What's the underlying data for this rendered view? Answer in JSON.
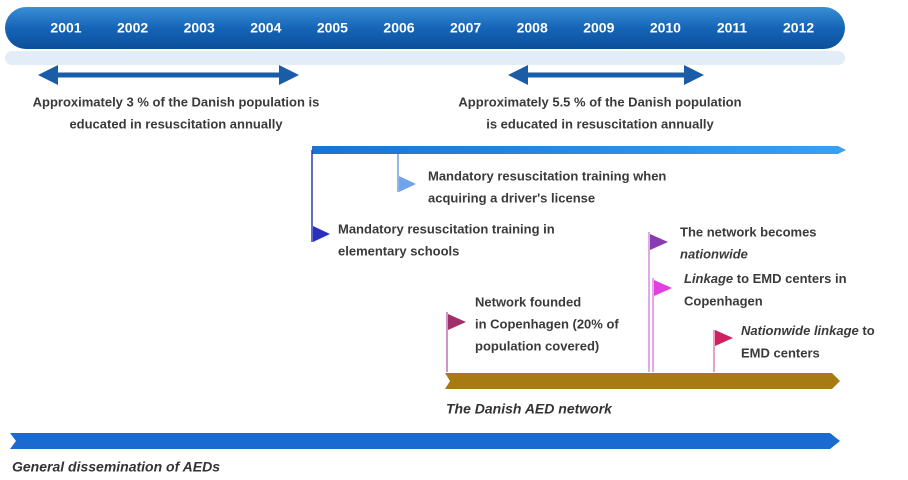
{
  "years": [
    "2001",
    "2002",
    "2003",
    "2004",
    "2005",
    "2006",
    "2007",
    "2008",
    "2009",
    "2010",
    "2011",
    "2012"
  ],
  "periods": [
    {
      "line1": "Approximately 3 % of the Danish population is",
      "line2": "educated in resuscitation annually"
    },
    {
      "line1": "Approximately 5.5 % of the Danish population",
      "line2": "is educated in resuscitation annually"
    }
  ],
  "training": [
    {
      "line1": "Mandatory resuscitation training when",
      "line2": "acquiring a driver's license"
    },
    {
      "line1": "Mandatory resuscitation training in",
      "line2": "elementary schools"
    }
  ],
  "aed_network": {
    "label": "The Danish AED network",
    "founded": {
      "line1": "Network founded",
      "line2": "in Copenhagen (20% of",
      "line3": "population covered)"
    },
    "nationwide": {
      "line1": "The network becomes",
      "line2": "nationwide"
    },
    "linkage": {
      "italic": "Linkage",
      "rest": " to EMD centers in",
      "line2": "Copenhagen"
    },
    "nationwide_linkage": {
      "italic": "Nationwide linkage",
      "rest": " to",
      "line2": "EMD centers"
    }
  },
  "general": {
    "label": "General dissemination of AEDs"
  }
}
